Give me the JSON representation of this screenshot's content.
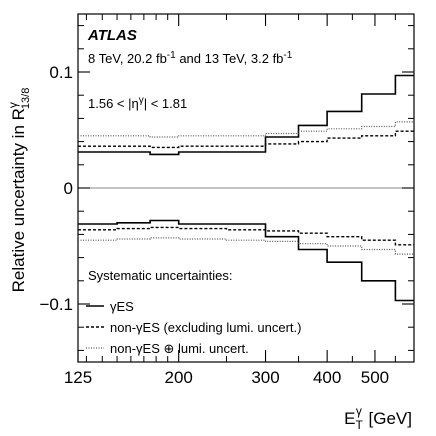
{
  "chart_data": {
    "type": "line",
    "title": "ATLAS",
    "subtitle": "8 TeV, 20.2 fb⁻¹ and 13 TeV, 3.2 fb⁻¹",
    "region_label": "1.56 < |ηᵞ| < 1.81",
    "xlabel": "Eₜᵞ [GeV]",
    "ylabel": "Relative uncertainty in Rᵞ 13/8",
    "xscale": "log",
    "xlim": [
      125,
      600
    ],
    "ylim": [
      -0.15,
      0.15
    ],
    "x_ticks": [
      {
        "value": 125,
        "label": "125"
      },
      {
        "value": 200,
        "label": "200"
      },
      {
        "value": 300,
        "label": "300"
      },
      {
        "value": 400,
        "label": "400"
      },
      {
        "value": 500,
        "label": "500"
      }
    ],
    "y_ticks": [
      {
        "value": 0.1,
        "label": "0.1"
      },
      {
        "value": 0,
        "label": "0"
      },
      {
        "value": -0.1,
        "label": "−0.1"
      }
    ],
    "bin_edges": [
      125,
      150,
      175,
      200,
      250,
      300,
      350,
      400,
      470,
      550,
      650
    ],
    "legend_title": "Systematic uncertainties:",
    "legend_placement": "bottom-left",
    "series": [
      {
        "name": "γES",
        "style": "solid",
        "up": [
          0.031,
          0.031,
          0.029,
          0.031,
          0.031,
          0.044,
          0.054,
          0.066,
          0.081,
          0.097
        ],
        "down": [
          -0.031,
          -0.03,
          -0.028,
          -0.031,
          -0.031,
          -0.042,
          -0.053,
          -0.064,
          -0.08,
          -0.097
        ]
      },
      {
        "name": "non-γES (excluding lumi. uncert.)",
        "style": "dashed",
        "up": [
          0.036,
          0.036,
          0.035,
          0.036,
          0.036,
          0.038,
          0.04,
          0.043,
          0.045,
          0.049
        ],
        "down": [
          -0.036,
          -0.035,
          -0.034,
          -0.035,
          -0.036,
          -0.037,
          -0.039,
          -0.042,
          -0.045,
          -0.049
        ]
      },
      {
        "name": "non-γES ⊕ lumi. uncert.",
        "style": "dotted",
        "up": [
          0.045,
          0.045,
          0.044,
          0.045,
          0.045,
          0.047,
          0.049,
          0.051,
          0.053,
          0.057
        ],
        "down": [
          -0.045,
          -0.044,
          -0.043,
          -0.044,
          -0.045,
          -0.046,
          -0.048,
          -0.05,
          -0.053,
          -0.057
        ]
      }
    ],
    "colors": {
      "line": "#000000",
      "zero_line": "#888888",
      "dotted": "#555555"
    }
  }
}
